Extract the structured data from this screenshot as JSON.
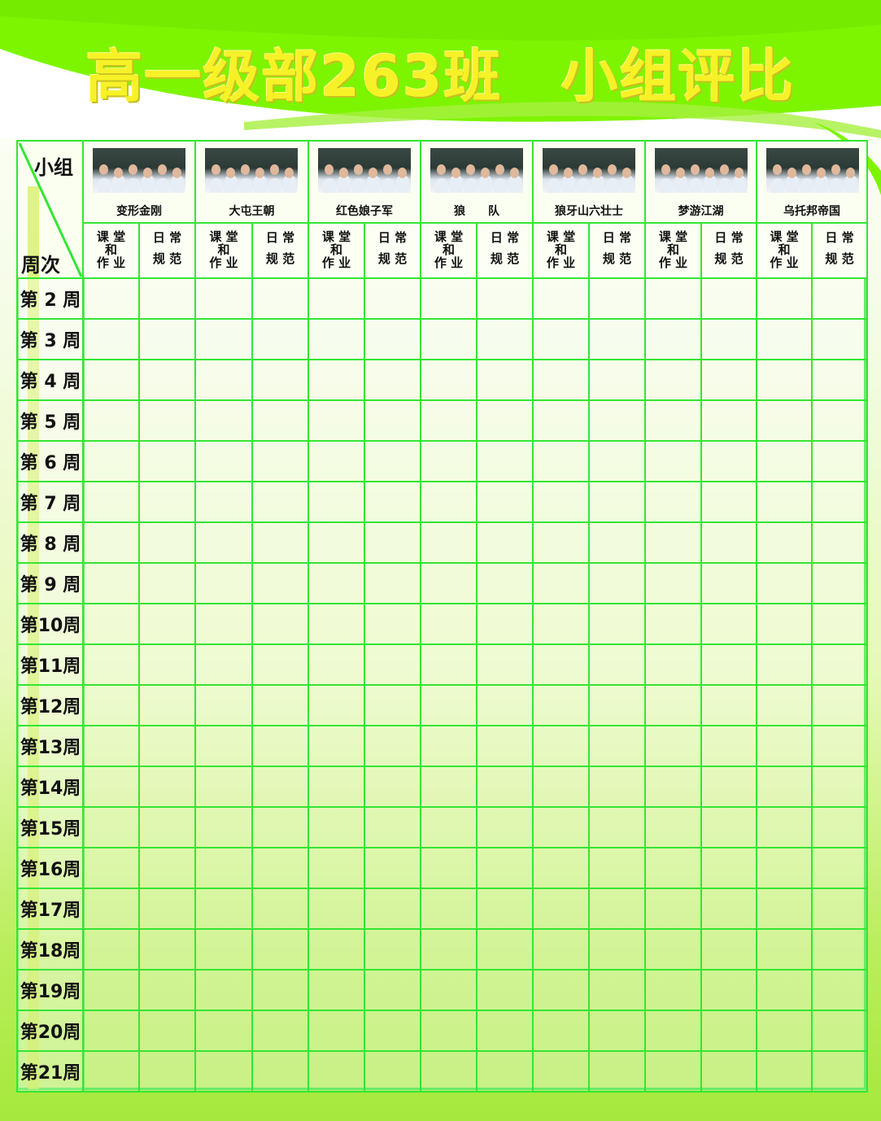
{
  "title": "高一级部263班　小组评比",
  "colors": {
    "grid": "#33e633",
    "title": "#f7f227",
    "banner": "#7df500"
  },
  "corner": {
    "top_label": "小组",
    "bottom_label": "周次"
  },
  "groups": [
    "变形金刚",
    "大屯王朝",
    "红色娘子军",
    "狼　　队",
    "狼牙山六壮士",
    "梦游江湖",
    "乌托邦帝国"
  ],
  "subheaders": [
    "课 堂\n和\n作 业",
    "日 常\n规 范"
  ],
  "weeks": [
    "第 2 周",
    "第 3 周",
    "第 4 周",
    "第 5 周",
    "第 6 周",
    "第 7 周",
    "第 8 周",
    "第 9 周",
    "第10周",
    "第11周",
    "第12周",
    "第13周",
    "第14周",
    "第15周",
    "第16周",
    "第17周",
    "第18周",
    "第19周",
    "第20周",
    "第21周"
  ]
}
